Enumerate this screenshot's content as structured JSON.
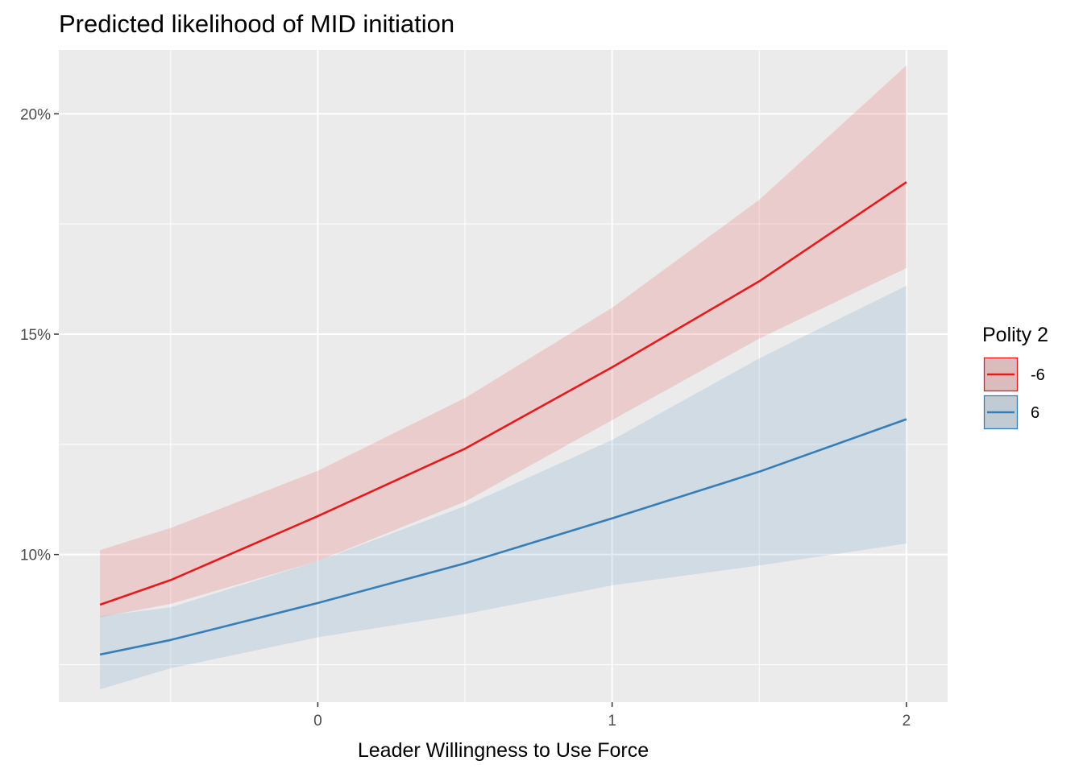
{
  "chart_data": {
    "type": "line",
    "title": "Predicted likelihood of MID initiation",
    "xlabel": "Leader Willingness to Use Force",
    "ylabel": "",
    "x_ticks": [
      0,
      1,
      2
    ],
    "x_tick_labels": [
      "0",
      "1",
      "2"
    ],
    "y_ticks": [
      0.1,
      0.15,
      0.2
    ],
    "y_tick_labels": [
      "10%",
      "15%",
      "20%"
    ],
    "xlim": [
      -0.88,
      2.14
    ],
    "ylim": [
      0.0665,
      0.2145
    ],
    "grid": true,
    "legend": {
      "title": "Polity 2",
      "position": "right"
    },
    "series": [
      {
        "name": "-6",
        "color": "#e41a1c",
        "x": [
          -0.74,
          -0.5,
          0,
          0.5,
          1,
          1.5,
          2
        ],
        "y": [
          0.0886,
          0.0942,
          0.1087,
          0.124,
          0.1425,
          0.162,
          0.1845
        ],
        "lower": [
          0.0858,
          0.0888,
          0.0985,
          0.112,
          0.1305,
          0.149,
          0.165
        ],
        "upper": [
          0.101,
          0.106,
          0.119,
          0.1355,
          0.156,
          0.1805,
          0.211
        ]
      },
      {
        "name": "6",
        "color": "#377eb8",
        "x": [
          -0.74,
          -0.5,
          0,
          0.5,
          1,
          1.5,
          2
        ],
        "y": [
          0.0773,
          0.0806,
          0.089,
          0.098,
          0.1082,
          0.1188,
          0.1307
        ],
        "lower": [
          0.0694,
          0.0742,
          0.0812,
          0.0865,
          0.093,
          0.0975,
          0.1025
        ],
        "upper": [
          0.086,
          0.088,
          0.0985,
          0.111,
          0.126,
          0.1445,
          0.161
        ]
      }
    ]
  }
}
